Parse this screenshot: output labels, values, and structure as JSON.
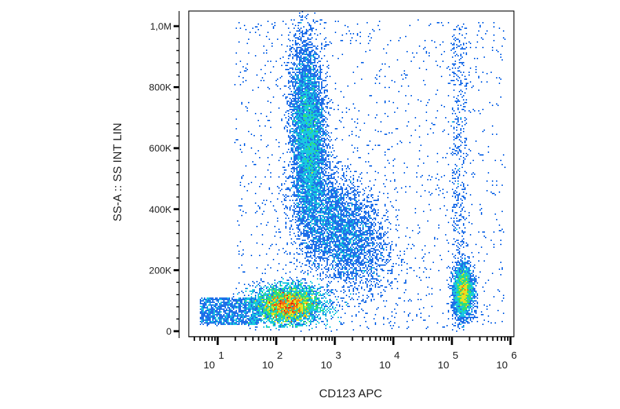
{
  "chart_data": {
    "type": "scatter",
    "title": "",
    "xlabel": "CD123 APC",
    "ylabel": "SS-A :: SS INT LIN",
    "x_scale": "log",
    "xlim": [
      1,
      1000000
    ],
    "ylim": [
      0,
      1050000
    ],
    "x_ticks": [
      {
        "base": "10",
        "exp": "1",
        "value": 10
      },
      {
        "base": "10",
        "exp": "2",
        "value": 100
      },
      {
        "base": "10",
        "exp": "3",
        "value": 1000
      },
      {
        "base": "10",
        "exp": "4",
        "value": 10000
      },
      {
        "base": "10",
        "exp": "5",
        "value": 100000
      },
      {
        "base": "10",
        "exp": "6",
        "value": 1000000
      }
    ],
    "y_ticks": [
      {
        "label": "0",
        "value": 0
      },
      {
        "label": "200K",
        "value": 200000
      },
      {
        "label": "400K",
        "value": 400000
      },
      {
        "label": "600K",
        "value": 600000
      },
      {
        "label": "800K",
        "value": 800000
      },
      {
        "label": "1,0M",
        "value": 1000000
      }
    ],
    "grid": false,
    "density_colormap": [
      "#1a1ad8",
      "#1f6fe8",
      "#19c8e0",
      "#30e070",
      "#e8e020",
      "#f07010",
      "#e02010"
    ],
    "populations": [
      {
        "log10_x_center": 2.2,
        "y_center": 85000,
        "log10_x_spread": 0.28,
        "y_spread": 30000,
        "relative_density": 1.0
      },
      {
        "log10_x_center": 2.55,
        "y_center": 640000,
        "log10_x_spread": 0.14,
        "y_spread": 150000,
        "relative_density": 0.55
      },
      {
        "log10_x_center": 3.1,
        "y_center": 330000,
        "log10_x_spread": 0.4,
        "y_spread": 90000,
        "relative_density": 0.25
      },
      {
        "log10_x_center": 5.2,
        "y_center": 130000,
        "log10_x_spread": 0.08,
        "y_spread": 40000,
        "relative_density": 0.18
      }
    ]
  }
}
